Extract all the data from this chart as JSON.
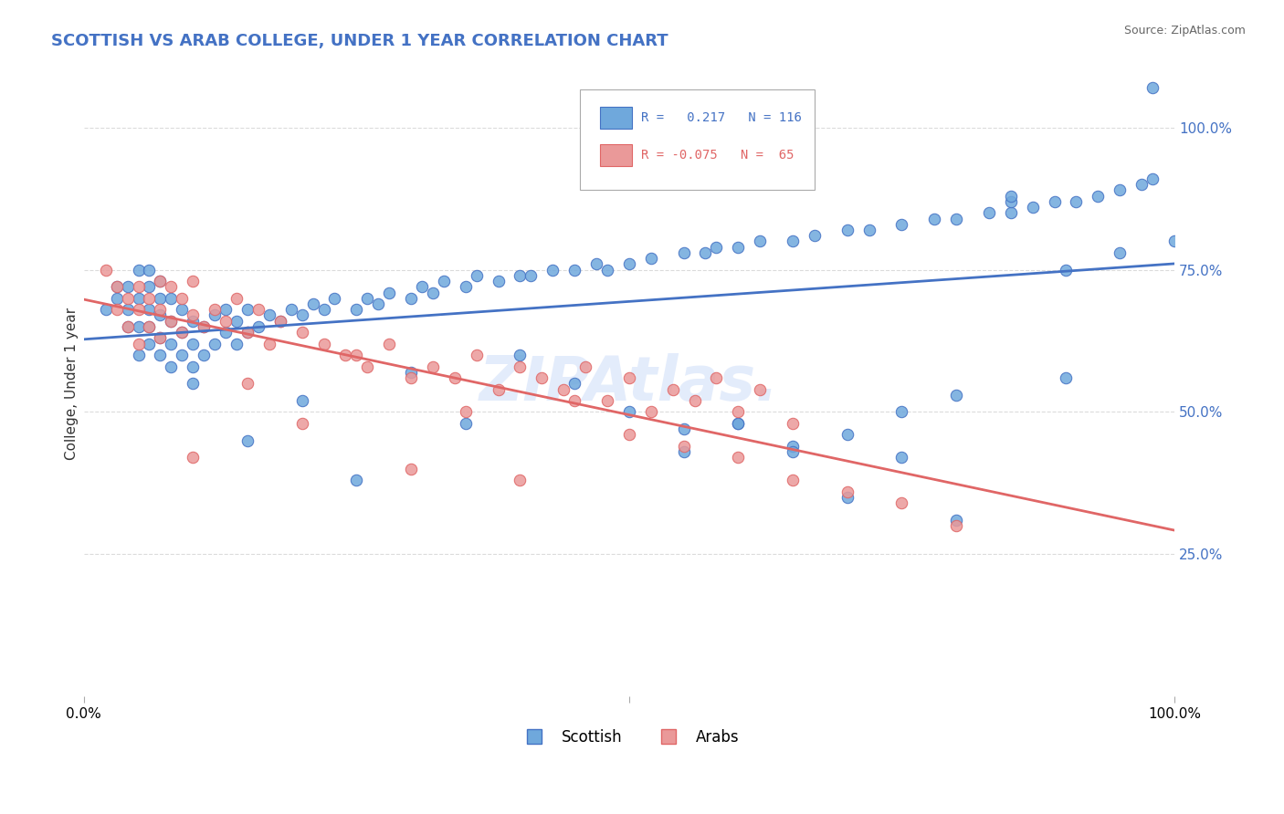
{
  "title": "SCOTTISH VS ARAB COLLEGE, UNDER 1 YEAR CORRELATION CHART",
  "source_text": "Source: ZipAtlas.com",
  "xlabel": "",
  "ylabel": "College, Under 1 year",
  "xlim": [
    0.0,
    1.0
  ],
  "ylim": [
    0.0,
    1.1
  ],
  "watermark": "ZIPAtlas.",
  "scottish_color": "#6fa8dc",
  "arab_color": "#ea9999",
  "scottish_line_color": "#4472c4",
  "arab_line_color": "#e06666",
  "trend_x_start": 0.0,
  "trend_x_end": 1.0,
  "background_color": "#ffffff",
  "grid_color": "#cccccc",
  "title_color": "#4472c4",
  "source_color": "#666666",
  "scatter_scottish_x": [
    0.02,
    0.03,
    0.03,
    0.04,
    0.04,
    0.04,
    0.05,
    0.05,
    0.05,
    0.05,
    0.06,
    0.06,
    0.06,
    0.06,
    0.06,
    0.07,
    0.07,
    0.07,
    0.07,
    0.07,
    0.08,
    0.08,
    0.08,
    0.08,
    0.09,
    0.09,
    0.09,
    0.1,
    0.1,
    0.1,
    0.11,
    0.11,
    0.12,
    0.12,
    0.13,
    0.13,
    0.14,
    0.14,
    0.15,
    0.15,
    0.16,
    0.17,
    0.18,
    0.19,
    0.2,
    0.21,
    0.22,
    0.23,
    0.25,
    0.26,
    0.27,
    0.28,
    0.3,
    0.31,
    0.32,
    0.33,
    0.35,
    0.36,
    0.38,
    0.4,
    0.41,
    0.43,
    0.45,
    0.47,
    0.48,
    0.5,
    0.52,
    0.55,
    0.57,
    0.58,
    0.6,
    0.62,
    0.65,
    0.67,
    0.7,
    0.72,
    0.75,
    0.78,
    0.8,
    0.83,
    0.85,
    0.87,
    0.89,
    0.91,
    0.93,
    0.95,
    0.97,
    0.98,
    0.55,
    0.6,
    0.65,
    0.7,
    0.75,
    0.8,
    0.85,
    0.9,
    0.1,
    0.15,
    0.2,
    0.25,
    0.3,
    0.35,
    0.4,
    0.45,
    0.5,
    0.55,
    0.6,
    0.65,
    0.7,
    0.75,
    0.8,
    0.85,
    0.9,
    0.95,
    0.98,
    1.0
  ],
  "scatter_scottish_y": [
    0.68,
    0.7,
    0.72,
    0.65,
    0.68,
    0.72,
    0.6,
    0.65,
    0.7,
    0.75,
    0.62,
    0.65,
    0.68,
    0.72,
    0.75,
    0.6,
    0.63,
    0.67,
    0.7,
    0.73,
    0.58,
    0.62,
    0.66,
    0.7,
    0.6,
    0.64,
    0.68,
    0.58,
    0.62,
    0.66,
    0.6,
    0.65,
    0.62,
    0.67,
    0.64,
    0.68,
    0.62,
    0.66,
    0.64,
    0.68,
    0.65,
    0.67,
    0.66,
    0.68,
    0.67,
    0.69,
    0.68,
    0.7,
    0.68,
    0.7,
    0.69,
    0.71,
    0.7,
    0.72,
    0.71,
    0.73,
    0.72,
    0.74,
    0.73,
    0.74,
    0.74,
    0.75,
    0.75,
    0.76,
    0.75,
    0.76,
    0.77,
    0.78,
    0.78,
    0.79,
    0.79,
    0.8,
    0.8,
    0.81,
    0.82,
    0.82,
    0.83,
    0.84,
    0.84,
    0.85,
    0.85,
    0.86,
    0.87,
    0.87,
    0.88,
    0.89,
    0.9,
    0.91,
    0.43,
    0.48,
    0.44,
    0.35,
    0.42,
    0.31,
    0.87,
    0.75,
    0.55,
    0.45,
    0.52,
    0.38,
    0.57,
    0.48,
    0.6,
    0.55,
    0.5,
    0.47,
    0.48,
    0.43,
    0.46,
    0.5,
    0.53,
    0.88,
    0.56,
    0.78,
    1.07,
    0.8
  ],
  "scatter_arab_x": [
    0.02,
    0.03,
    0.03,
    0.04,
    0.04,
    0.05,
    0.05,
    0.05,
    0.06,
    0.06,
    0.07,
    0.07,
    0.07,
    0.08,
    0.08,
    0.09,
    0.09,
    0.1,
    0.1,
    0.11,
    0.12,
    0.13,
    0.14,
    0.15,
    0.16,
    0.17,
    0.18,
    0.2,
    0.22,
    0.24,
    0.26,
    0.28,
    0.3,
    0.32,
    0.34,
    0.36,
    0.38,
    0.4,
    0.42,
    0.44,
    0.46,
    0.48,
    0.5,
    0.52,
    0.54,
    0.56,
    0.58,
    0.6,
    0.62,
    0.65,
    0.1,
    0.15,
    0.2,
    0.25,
    0.3,
    0.35,
    0.4,
    0.45,
    0.5,
    0.55,
    0.6,
    0.65,
    0.7,
    0.75,
    0.8
  ],
  "scatter_arab_y": [
    0.75,
    0.72,
    0.68,
    0.7,
    0.65,
    0.72,
    0.68,
    0.62,
    0.7,
    0.65,
    0.68,
    0.63,
    0.73,
    0.66,
    0.72,
    0.64,
    0.7,
    0.67,
    0.73,
    0.65,
    0.68,
    0.66,
    0.7,
    0.64,
    0.68,
    0.62,
    0.66,
    0.64,
    0.62,
    0.6,
    0.58,
    0.62,
    0.56,
    0.58,
    0.56,
    0.6,
    0.54,
    0.58,
    0.56,
    0.54,
    0.58,
    0.52,
    0.56,
    0.5,
    0.54,
    0.52,
    0.56,
    0.5,
    0.54,
    0.48,
    0.42,
    0.55,
    0.48,
    0.6,
    0.4,
    0.5,
    0.38,
    0.52,
    0.46,
    0.44,
    0.42,
    0.38,
    0.36,
    0.34,
    0.3
  ]
}
